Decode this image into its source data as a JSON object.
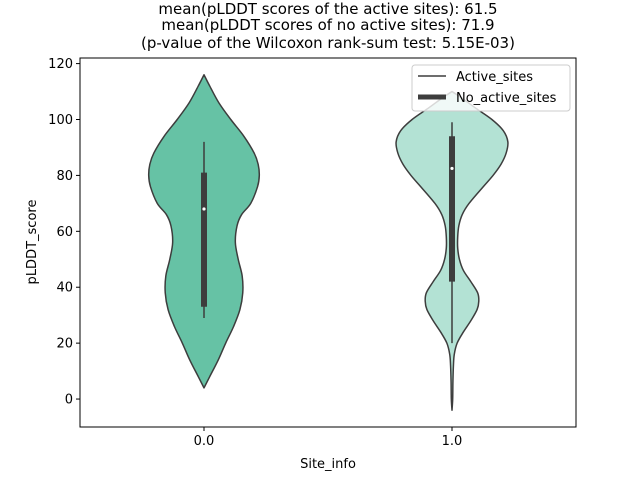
{
  "chart_data": {
    "type": "violin",
    "title_lines": [
      "mean(pLDDT scores of the active sites): 61.5",
      "mean(pLDDT scores of no active sites): 71.9",
      "(p-value of the Wilcoxon rank-sum test: 5.15E-03)"
    ],
    "xlabel": "Site_info",
    "ylabel": "pLDDT_score",
    "ylim": [
      -10,
      122
    ],
    "yticks": [
      0,
      20,
      40,
      60,
      80,
      100,
      120
    ],
    "categories": [
      "0.0",
      "1.0"
    ],
    "legend": {
      "placement": "top-right",
      "entries": [
        "Active_sites",
        "No_active_sites"
      ]
    },
    "violins": [
      {
        "category": "0.0",
        "color": "#66c2a5",
        "min": 4,
        "max": 116,
        "q1": 33,
        "median": 68,
        "q3": 81,
        "whisker_low": 29,
        "whisker_high": 92,
        "density": [
          [
            4,
            0.0
          ],
          [
            8,
            0.1
          ],
          [
            14,
            0.25
          ],
          [
            20,
            0.38
          ],
          [
            26,
            0.52
          ],
          [
            32,
            0.63
          ],
          [
            38,
            0.68
          ],
          [
            44,
            0.67
          ],
          [
            50,
            0.6
          ],
          [
            56,
            0.55
          ],
          [
            62,
            0.58
          ],
          [
            66,
            0.66
          ],
          [
            70,
            0.82
          ],
          [
            76,
            0.94
          ],
          [
            80,
            0.97
          ],
          [
            84,
            0.95
          ],
          [
            88,
            0.88
          ],
          [
            94,
            0.7
          ],
          [
            100,
            0.47
          ],
          [
            106,
            0.26
          ],
          [
            112,
            0.1
          ],
          [
            116,
            0.0
          ]
        ]
      },
      {
        "category": "1.0",
        "color": "#b3e2d4",
        "min": -4,
        "max": 110,
        "q1": 42,
        "median": 82.5,
        "q3": 94,
        "whisker_low": 20,
        "whisker_high": 99,
        "density": [
          [
            -4,
            0.0
          ],
          [
            0,
            0.012
          ],
          [
            6,
            0.016
          ],
          [
            12,
            0.025
          ],
          [
            16,
            0.04
          ],
          [
            20,
            0.09
          ],
          [
            24,
            0.2
          ],
          [
            28,
            0.33
          ],
          [
            32,
            0.44
          ],
          [
            35,
            0.47
          ],
          [
            38,
            0.45
          ],
          [
            42,
            0.33
          ],
          [
            46,
            0.2
          ],
          [
            50,
            0.13
          ],
          [
            54,
            0.1
          ],
          [
            58,
            0.1
          ],
          [
            62,
            0.12
          ],
          [
            66,
            0.18
          ],
          [
            70,
            0.3
          ],
          [
            76,
            0.55
          ],
          [
            80,
            0.72
          ],
          [
            84,
            0.86
          ],
          [
            88,
            0.95
          ],
          [
            92,
            0.98
          ],
          [
            96,
            0.9
          ],
          [
            100,
            0.7
          ],
          [
            104,
            0.42
          ],
          [
            108,
            0.15
          ],
          [
            110,
            0.0
          ]
        ]
      }
    ]
  }
}
